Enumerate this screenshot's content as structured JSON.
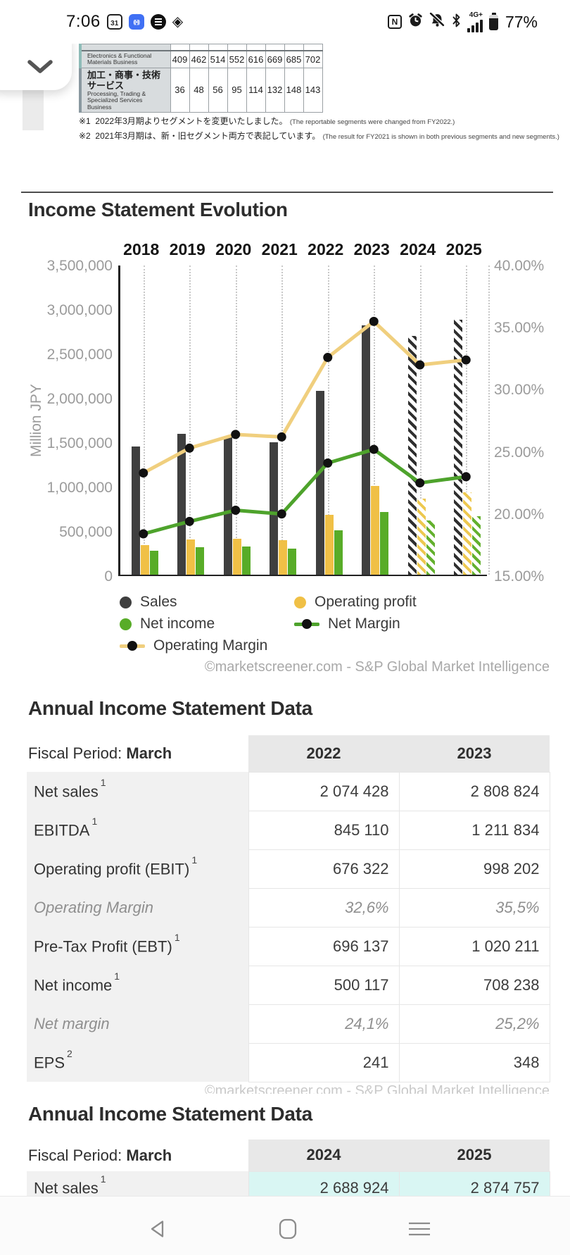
{
  "status_bar": {
    "time": "7:06",
    "calendar_day": "31",
    "cast_glyph": "((•))",
    "nfc_label": "N",
    "gem_glyph": "◈",
    "network_label": "4G+",
    "battery_percent": "77%",
    "battery_level": 77
  },
  "top_panel": {
    "segment_table": {
      "rows": [
        {
          "label_ja": "",
          "label_en": "Electronics & Functional Materials Business",
          "accent": "a1",
          "values": [
            "409",
            "462",
            "514",
            "552",
            "616",
            "669",
            "685",
            "702"
          ]
        },
        {
          "label_ja": "加工・商事・技術サービス",
          "label_en": "Processing, Trading & Specialized Services Business",
          "accent": "a2",
          "values": [
            "36",
            "48",
            "56",
            "95",
            "114",
            "132",
            "148",
            "143"
          ]
        }
      ]
    },
    "notes": [
      {
        "ja": "※1 2022年3月期よりセグメントを変更いたしました。",
        "en": "(The reportable segments were changed from FY2022.)"
      },
      {
        "ja": "※2 2021年3月期は、新・旧セグメント両方で表記しています。",
        "en": "(The result for FY2021 is shown in both previous segments and new segments.)"
      }
    ]
  },
  "chart_section": {
    "title": "Income Statement Evolution"
  },
  "chart_data": {
    "type": "bar+line",
    "categories": [
      "2018",
      "2019",
      "2020",
      "2021",
      "2022",
      "2023",
      "2024",
      "2025"
    ],
    "estimate_categories": [
      "2024",
      "2025"
    ],
    "left_axis": {
      "label": "Million JPY",
      "min": 0,
      "max": 3500000,
      "ticks": [
        "3,500,000",
        "3,000,000",
        "2,500,000",
        "2,000,000",
        "1,500,000",
        "1,000,000",
        "500,000",
        "0"
      ]
    },
    "right_axis": {
      "min": 15,
      "max": 40,
      "ticks": [
        "40.00%",
        "35.00%",
        "30.00%",
        "25.00%",
        "20.00%",
        "15.00%"
      ]
    },
    "series": [
      {
        "name": "Sales",
        "type": "bar",
        "axis": "left",
        "color": "#3f3f3f",
        "values": [
          1445000,
          1590000,
          1545000,
          1495000,
          2074428,
          2808824,
          2688924,
          2874757
        ]
      },
      {
        "name": "Operating profit",
        "type": "bar",
        "axis": "left",
        "color": "#f0c046",
        "values": [
          337000,
          400000,
          405000,
          392000,
          676322,
          998202,
          858000,
          931000
        ]
      },
      {
        "name": "Net income",
        "type": "bar",
        "axis": "left",
        "color": "#58ac28",
        "values": [
          266000,
          309000,
          314000,
          294000,
          500117,
          708238,
          608000,
          661000
        ]
      },
      {
        "name": "Operating Margin",
        "type": "line",
        "axis": "right",
        "color": "#f0cf7e",
        "values": [
          23.3,
          25.3,
          26.4,
          26.2,
          32.6,
          35.5,
          32.0,
          32.4
        ]
      },
      {
        "name": "Net Margin",
        "type": "line",
        "axis": "right",
        "color": "#4ea32c",
        "values": [
          18.4,
          19.4,
          20.3,
          20.0,
          24.1,
          25.2,
          22.5,
          23.0
        ]
      }
    ],
    "grid": "vertical-dotted",
    "legend_position": "bottom"
  },
  "legend": {
    "items": [
      {
        "label": "Sales",
        "swatch": "dot",
        "color": "#3f3f3f"
      },
      {
        "label": "Operating profit",
        "swatch": "dot",
        "color": "#f0c046"
      },
      {
        "label": "Net income",
        "swatch": "dot",
        "color": "#58ac28"
      },
      {
        "label": "Net Margin",
        "swatch": "line-dot",
        "color": "#4ea32c"
      },
      {
        "label": "Operating Margin",
        "swatch": "line-dot",
        "color": "#f0cf7e"
      }
    ]
  },
  "branding": {
    "source_note": "©marketscreener.com - S&P Global Market Intelligence"
  },
  "annual_tables": [
    {
      "heading": "Annual Income Statement Data",
      "header": {
        "label": "Fiscal Period:",
        "period": "March",
        "years": [
          "2022",
          "2023"
        ]
      },
      "rows": [
        {
          "label": "Net sales",
          "sup": "1",
          "style": "normal",
          "values": [
            "2 074 428",
            "2 808 824"
          ]
        },
        {
          "label": "EBITDA",
          "sup": "1",
          "style": "normal",
          "values": [
            "845 110",
            "1 211 834"
          ]
        },
        {
          "label": "Operating profit (EBIT)",
          "sup": "1",
          "style": "normal",
          "values": [
            "676 322",
            "998 202"
          ]
        },
        {
          "label": "Operating Margin",
          "sup": "",
          "style": "italic",
          "values": [
            "32,6%",
            "35,5%"
          ]
        },
        {
          "label": "Pre-Tax Profit (EBT)",
          "sup": "1",
          "style": "normal",
          "values": [
            "696 137",
            "1 020 211"
          ]
        },
        {
          "label": "Net income",
          "sup": "1",
          "style": "normal",
          "values": [
            "500 117",
            "708 238"
          ]
        },
        {
          "label": "Net margin",
          "sup": "",
          "style": "italic",
          "values": [
            "24,1%",
            "25,2%"
          ]
        },
        {
          "label": "EPS",
          "sup": "2",
          "style": "normal",
          "values": [
            "241",
            "348"
          ]
        }
      ]
    },
    {
      "heading": "Annual Income Statement Data",
      "header": {
        "label": "Fiscal Period:",
        "period": "March",
        "years": [
          "2024",
          "2025"
        ]
      },
      "rows": [
        {
          "label": "Net sales",
          "sup": "1",
          "style": "estimate",
          "values": [
            "2 688 924",
            "2 874 757"
          ]
        }
      ]
    }
  ],
  "nav_bar": {
    "icons": [
      "back-triangle",
      "home-outline",
      "menu-lines"
    ]
  }
}
